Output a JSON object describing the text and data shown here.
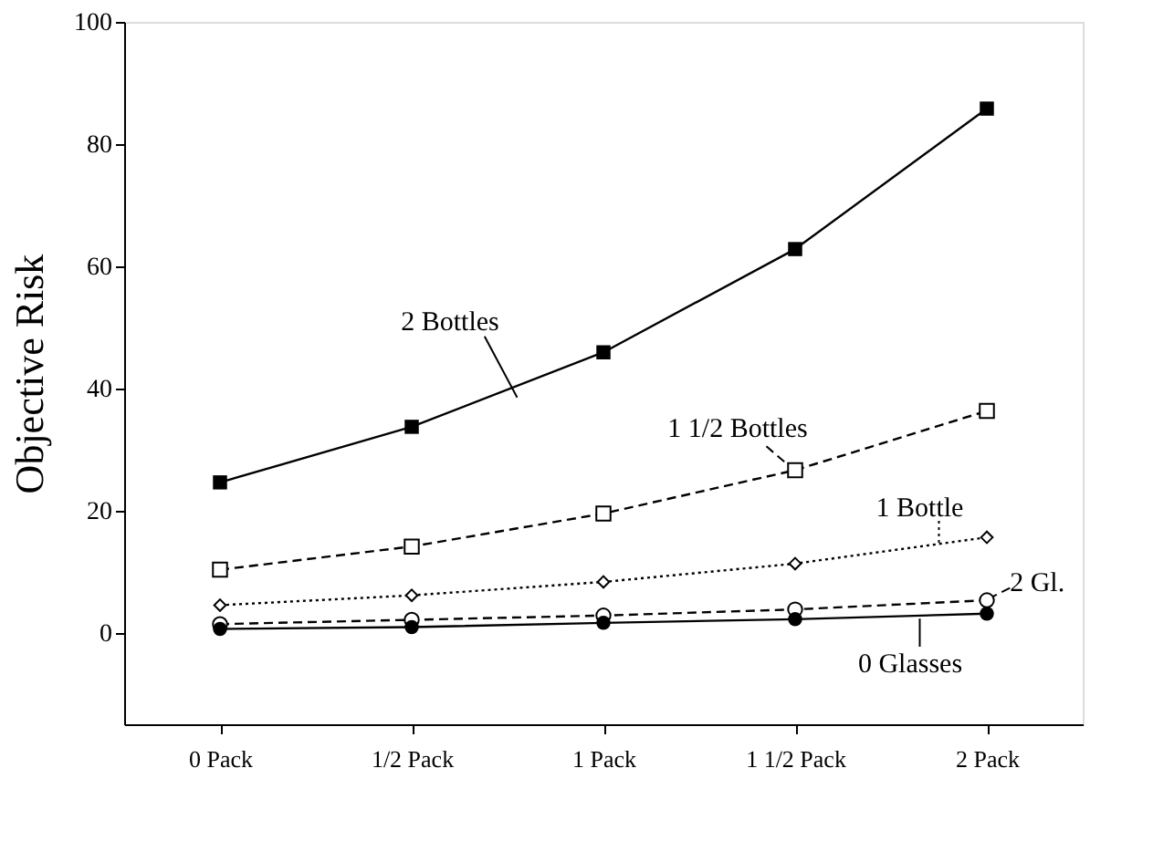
{
  "chart_data": {
    "type": "line",
    "ylabel": "Objective Risk",
    "categories": [
      "0 Pack",
      "1/2 Pack",
      "1 Pack",
      "1 1/2 Pack",
      "2 Pack"
    ],
    "ylim": [
      -15,
      100
    ],
    "yticks": [
      0,
      20,
      40,
      60,
      80,
      100
    ],
    "grid": false,
    "series": [
      {
        "name": "2 Bottles",
        "color": "#000000",
        "marker": "square",
        "line_style": "solid",
        "values": [
          24.6,
          33.7,
          45.9,
          62.8,
          85.8
        ]
      },
      {
        "name": "1 1/2 Bottles",
        "color": "#000000",
        "marker": "square",
        "line_style": "dashed",
        "values": [
          10.3,
          14.1,
          19.5,
          26.6,
          36.3
        ]
      },
      {
        "name": "1 Bottle",
        "color": "#000000",
        "marker": "diamond",
        "line_style": "dotted",
        "values": [
          4.5,
          6.1,
          8.3,
          11.3,
          15.6
        ]
      },
      {
        "name": "2 Gl.",
        "color": "#000000",
        "marker": "circle",
        "line_style": "dashed",
        "values": [
          1.4,
          2.1,
          2.8,
          3.8,
          5.3
        ]
      },
      {
        "name": "0 Glasses",
        "color": "#000000",
        "marker": "circle",
        "line_style": "solid",
        "values": [
          0.6,
          0.9,
          1.6,
          2.2,
          3.1
        ]
      }
    ]
  }
}
